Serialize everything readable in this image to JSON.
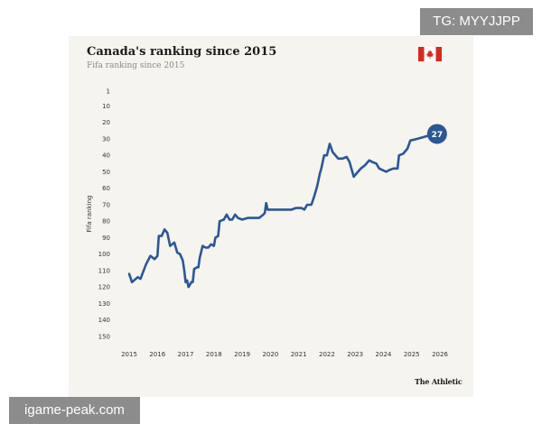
{
  "watermark_top": "TG: MYYJJPP",
  "watermark_bottom": "igame-peak.com",
  "brand": "The Athletic",
  "flag_icon": "canada-flag-icon",
  "colors": {
    "line": "#2b5796",
    "marker": "#2b5796",
    "flag_red": "#d52b1e",
    "background": "#f5f4ef"
  },
  "chart_data": {
    "type": "line",
    "title": "Canada's ranking since 2015",
    "subtitle": "Fifa ranking since 2015",
    "xlabel": "",
    "ylabel": "Fifa ranking",
    "y_inverted": true,
    "ylim": [
      1,
      150
    ],
    "xlim": [
      2015,
      2026
    ],
    "grid": false,
    "y_ticks": [
      1,
      10,
      20,
      30,
      40,
      50,
      60,
      70,
      80,
      90,
      100,
      110,
      120,
      130,
      140,
      150
    ],
    "x_ticks": [
      "2015",
      "2016",
      "2017",
      "2018",
      "2019",
      "2020",
      "2021",
      "2022",
      "2023",
      "2024",
      "2025",
      "2026"
    ],
    "series": [
      {
        "points": [
          [
            2015.0,
            112
          ],
          [
            2015.1,
            117
          ],
          [
            2015.3,
            114
          ],
          [
            2015.4,
            115
          ],
          [
            2015.6,
            106
          ],
          [
            2015.75,
            101
          ],
          [
            2015.9,
            103
          ],
          [
            2016.0,
            101
          ],
          [
            2016.05,
            89
          ],
          [
            2016.15,
            89
          ],
          [
            2016.25,
            85
          ],
          [
            2016.35,
            87
          ],
          [
            2016.45,
            95
          ],
          [
            2016.6,
            93
          ],
          [
            2016.7,
            99
          ],
          [
            2016.8,
            100
          ],
          [
            2016.9,
            104
          ],
          [
            2016.95,
            110
          ],
          [
            2017.0,
            117
          ],
          [
            2017.05,
            116
          ],
          [
            2017.1,
            120
          ],
          [
            2017.2,
            117
          ],
          [
            2017.25,
            117
          ],
          [
            2017.3,
            109
          ],
          [
            2017.4,
            108
          ],
          [
            2017.45,
            108
          ],
          [
            2017.5,
            102
          ],
          [
            2017.6,
            95
          ],
          [
            2017.7,
            96
          ],
          [
            2017.8,
            96
          ],
          [
            2017.9,
            94
          ],
          [
            2018.0,
            95
          ],
          [
            2018.05,
            90
          ],
          [
            2018.15,
            89
          ],
          [
            2018.2,
            80
          ],
          [
            2018.35,
            79
          ],
          [
            2018.45,
            76
          ],
          [
            2018.55,
            79
          ],
          [
            2018.65,
            79
          ],
          [
            2018.75,
            76
          ],
          [
            2018.85,
            78
          ],
          [
            2019.0,
            79
          ],
          [
            2019.2,
            78
          ],
          [
            2019.4,
            78
          ],
          [
            2019.6,
            78
          ],
          [
            2019.75,
            76
          ],
          [
            2019.8,
            75
          ],
          [
            2019.85,
            69
          ],
          [
            2019.9,
            73
          ],
          [
            2020.0,
            73
          ],
          [
            2020.3,
            73
          ],
          [
            2020.5,
            73
          ],
          [
            2020.75,
            73
          ],
          [
            2020.9,
            72
          ],
          [
            2021.1,
            72
          ],
          [
            2021.2,
            73
          ],
          [
            2021.3,
            70
          ],
          [
            2021.45,
            70
          ],
          [
            2021.55,
            65
          ],
          [
            2021.65,
            59
          ],
          [
            2021.75,
            51
          ],
          [
            2021.8,
            48
          ],
          [
            2021.9,
            40
          ],
          [
            2022.0,
            40
          ],
          [
            2022.1,
            33
          ],
          [
            2022.2,
            38
          ],
          [
            2022.4,
            42
          ],
          [
            2022.55,
            42
          ],
          [
            2022.7,
            41
          ],
          [
            2022.8,
            44
          ],
          [
            2022.95,
            53
          ],
          [
            2023.1,
            50
          ],
          [
            2023.2,
            48
          ],
          [
            2023.35,
            46
          ],
          [
            2023.5,
            43
          ],
          [
            2023.6,
            44
          ],
          [
            2023.75,
            45
          ],
          [
            2023.85,
            48
          ],
          [
            2024.1,
            50
          ],
          [
            2024.2,
            49
          ],
          [
            2024.35,
            48
          ],
          [
            2024.5,
            48
          ],
          [
            2024.55,
            40
          ],
          [
            2024.7,
            39
          ],
          [
            2024.85,
            36
          ],
          [
            2024.95,
            31
          ],
          [
            2025.2,
            30
          ],
          [
            2025.4,
            29
          ],
          [
            2025.6,
            28
          ],
          [
            2025.7,
            27
          ]
        ]
      }
    ],
    "annotations": [
      {
        "x": 2025.9,
        "y": 27,
        "label": "27"
      }
    ]
  }
}
